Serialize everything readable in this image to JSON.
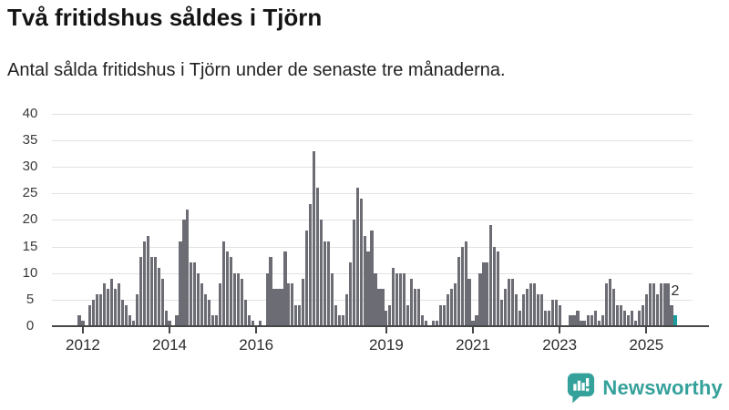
{
  "header": {
    "title": "Två fritidshus såldes i Tjörn",
    "subtitle": "Antal sålda fritidshus i Tjörn under de senaste tre månaderna."
  },
  "chart_data": {
    "type": "bar",
    "title": "Två fritidshus såldes i Tjörn",
    "subtitle": "Antal sålda fritidshus i Tjörn under de senaste tre månaderna.",
    "ylabel": "",
    "xlabel": "",
    "ylim": [
      0,
      40
    ],
    "y_ticks": [
      0,
      5,
      10,
      15,
      20,
      25,
      30,
      35,
      40
    ],
    "grid": "horizontal",
    "start_month": "2011-12",
    "frequency": "monthly-rolling-3-month-sum",
    "x_ticks": [
      {
        "label": "2012",
        "month_index": 1
      },
      {
        "label": "2014",
        "month_index": 25
      },
      {
        "label": "2016",
        "month_index": 49
      },
      {
        "label": "2019",
        "month_index": 85
      },
      {
        "label": "2021",
        "month_index": 109
      },
      {
        "label": "2023",
        "month_index": 133
      },
      {
        "label": "2025",
        "month_index": 157
      }
    ],
    "values": [
      2,
      1,
      0,
      4,
      5,
      6,
      6,
      8,
      7,
      9,
      7,
      8,
      5,
      4,
      2,
      1,
      6,
      13,
      16,
      17,
      13,
      13,
      11,
      9,
      3,
      1,
      0,
      2,
      16,
      20,
      22,
      12,
      12,
      10,
      8,
      6,
      5,
      2,
      2,
      8,
      16,
      14,
      13,
      10,
      10,
      9,
      5,
      2,
      1,
      0,
      1,
      0,
      10,
      13,
      7,
      7,
      7,
      14,
      8,
      8,
      4,
      4,
      9,
      18,
      23,
      33,
      26,
      20,
      16,
      16,
      10,
      4,
      2,
      2,
      6,
      12,
      20,
      26,
      24,
      17,
      14,
      18,
      10,
      7,
      7,
      3,
      4,
      11,
      10,
      10,
      10,
      4,
      9,
      7,
      7,
      2,
      1,
      0,
      1,
      1,
      4,
      4,
      6,
      7,
      8,
      13,
      15,
      16,
      9,
      1,
      2,
      10,
      12,
      12,
      19,
      15,
      14,
      5,
      7,
      9,
      9,
      6,
      3,
      6,
      7,
      8,
      8,
      6,
      6,
      3,
      3,
      5,
      5,
      4,
      0,
      0,
      2,
      2,
      3,
      1,
      1,
      2,
      2,
      3,
      1,
      2,
      8,
      9,
      7,
      4,
      4,
      3,
      2,
      3,
      1,
      3,
      4,
      6,
      8,
      8,
      6,
      8,
      8,
      8,
      4,
      2
    ],
    "bar_color": "#6c6c74",
    "highlight": {
      "index": 165,
      "value": 2,
      "label": "2",
      "color": "#169e9e"
    }
  },
  "branding": {
    "logo_text": "Newsworthy",
    "logo_color": "#35a19b",
    "logo_icon": "bar-chart-speech-bubble"
  }
}
